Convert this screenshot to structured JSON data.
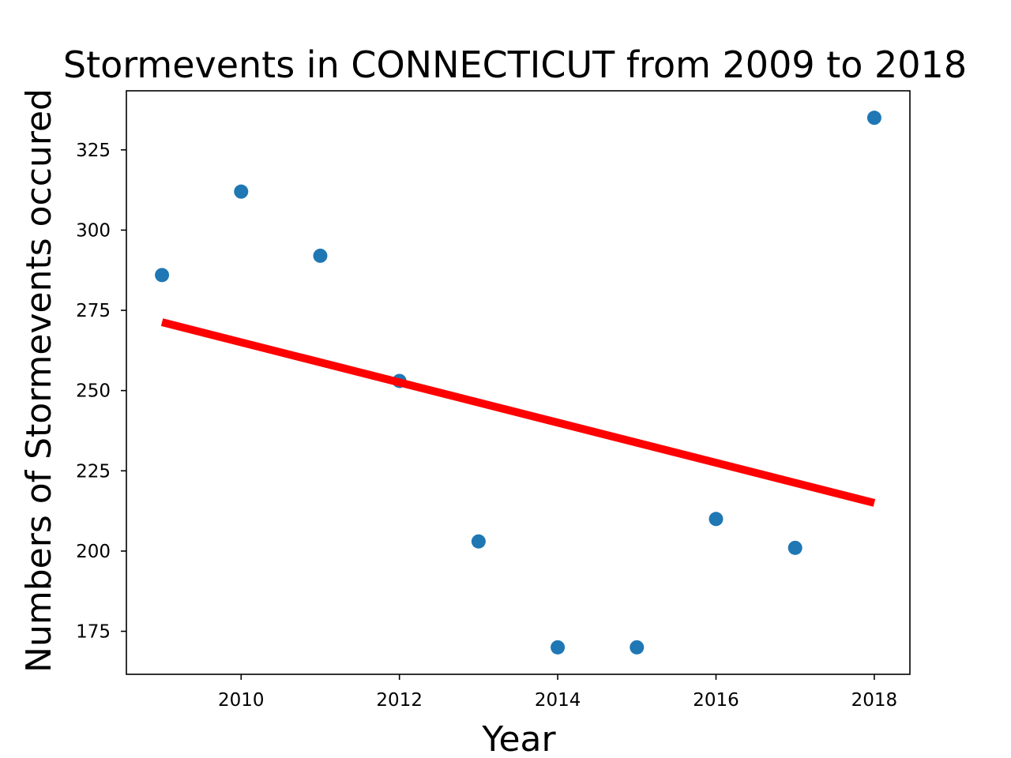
{
  "chart_data": {
    "type": "scatter",
    "title": "Stormevents in CONNECTICUT from 2009 to 2018",
    "xlabel": "Year",
    "ylabel": "Numbers of Stormevents occured",
    "xlim": [
      2008.55,
      2018.45
    ],
    "ylim": [
      161.6,
      343.4
    ],
    "xticks": [
      2010,
      2012,
      2014,
      2016,
      2018
    ],
    "yticks": [
      175,
      200,
      225,
      250,
      275,
      300,
      325
    ],
    "grid": false,
    "legend": "none",
    "series": [
      {
        "type": "scatter",
        "color": "#1f77b4",
        "x": [
          2009,
          2010,
          2011,
          2012,
          2013,
          2014,
          2015,
          2016,
          2017,
          2018
        ],
        "y": [
          286,
          312,
          292,
          253,
          203,
          170,
          170,
          210,
          201,
          335
        ]
      },
      {
        "type": "line",
        "color": "#ff0000",
        "x": [
          2009,
          2018
        ],
        "y": [
          271.3,
          215.0
        ]
      }
    ]
  }
}
